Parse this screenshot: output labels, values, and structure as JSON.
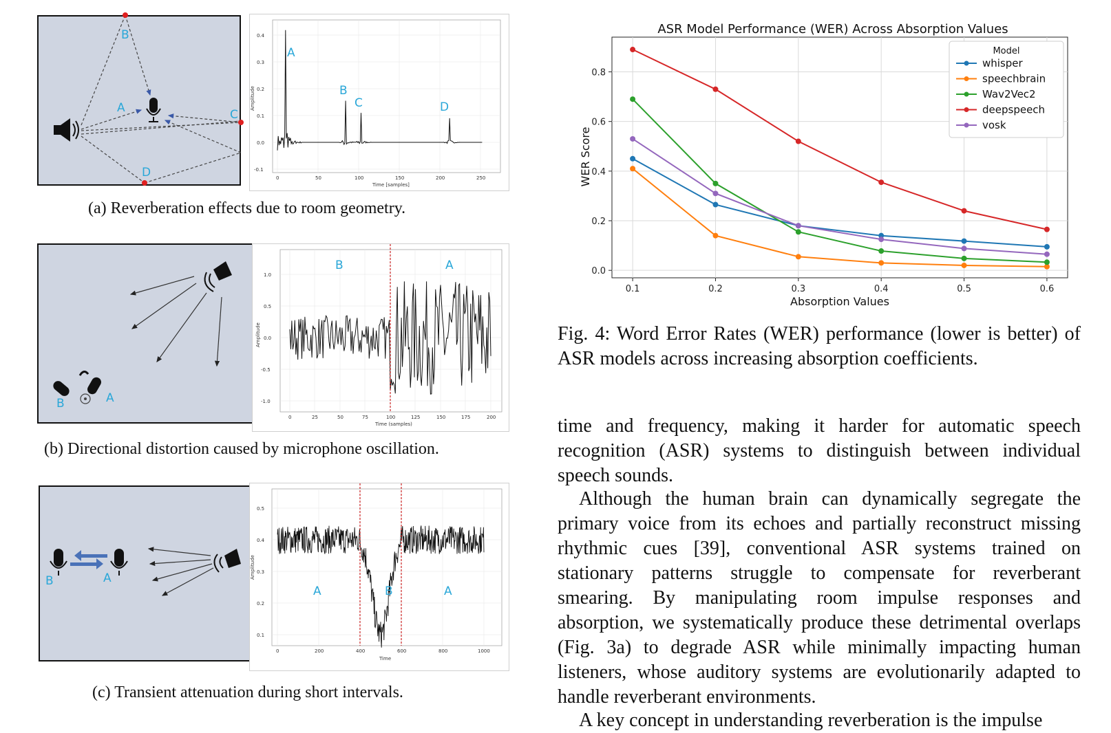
{
  "panel_a": {
    "caption": "(a) Reverberation effects due to room geometry.",
    "room_labels": [
      "A",
      "B",
      "C",
      "D"
    ],
    "plot_peak_labels": [
      "A",
      "B",
      "C",
      "D"
    ],
    "xlabel": "Time [samples]",
    "ylabel": "Amplitude",
    "xticks": [
      "0",
      "50",
      "100",
      "150",
      "200",
      "250"
    ],
    "yticks": [
      "0.4",
      "0.3",
      "0.2",
      "0.1",
      "0.0",
      "-0.1"
    ]
  },
  "panel_b": {
    "caption": "(b) Directional distortion caused by microphone oscillation.",
    "room_labels": [
      "B",
      "A"
    ],
    "plot_region_labels": [
      "B",
      "A"
    ],
    "xlabel": "Time (samples)",
    "ylabel": "Amplitude",
    "xticks": [
      "0",
      "25",
      "50",
      "75",
      "100",
      "125",
      "150",
      "175",
      "200"
    ],
    "yticks": [
      "1.0",
      "0.5",
      "0.0",
      "-0.5",
      "-1.0"
    ]
  },
  "panel_c": {
    "caption": "(c) Transient attenuation during short intervals.",
    "room_labels": [
      "B",
      "A"
    ],
    "plot_region_labels": [
      "A",
      "B",
      "A"
    ],
    "xlabel": "Time",
    "ylabel": "Amplitude",
    "xticks": [
      "0",
      "200",
      "400",
      "600",
      "800",
      "1000"
    ],
    "yticks": [
      "0.5",
      "0.4",
      "0.3",
      "0.2",
      "0.1"
    ]
  },
  "chart_data": {
    "type": "line",
    "title": "ASR Model Performance (WER) Across Absorption Values",
    "xlabel": "Absorption Values",
    "ylabel": "WER Score",
    "legend_title": "Model",
    "legend_position": "top-right",
    "grid": true,
    "xlim": [
      0.075,
      0.625
    ],
    "ylim": [
      -0.03,
      0.94
    ],
    "xticks": [
      0.1,
      0.2,
      0.3,
      0.4,
      0.5,
      0.6
    ],
    "yticks": [
      0.0,
      0.2,
      0.4,
      0.6,
      0.8
    ],
    "x": [
      0.1,
      0.2,
      0.3,
      0.4,
      0.5,
      0.6
    ],
    "series": [
      {
        "name": "whisper",
        "color": "#1f77b4",
        "values": [
          0.45,
          0.265,
          0.18,
          0.14,
          0.118,
          0.095
        ]
      },
      {
        "name": "speechbrain",
        "color": "#ff7f0e",
        "values": [
          0.41,
          0.14,
          0.055,
          0.03,
          0.02,
          0.015
        ]
      },
      {
        "name": "Wav2Vec2",
        "color": "#2ca02c",
        "values": [
          0.69,
          0.35,
          0.155,
          0.078,
          0.048,
          0.033
        ]
      },
      {
        "name": "deepspeech",
        "color": "#d62728",
        "values": [
          0.89,
          0.73,
          0.52,
          0.355,
          0.24,
          0.165
        ]
      },
      {
        "name": "vosk",
        "color": "#9467bd",
        "values": [
          0.53,
          0.31,
          0.18,
          0.125,
          0.088,
          0.065
        ]
      }
    ]
  },
  "fig4_caption": "Fig. 4: Word Error Rates (WER) performance (lower is better) of ASR models across increasing absorption coefficients.",
  "para1": "time and frequency, making it harder for automatic speech recognition (ASR) systems to distinguish between individual speech sounds.",
  "para2": "Although the human brain can dynamically segregate the primary voice from its echoes and partially reconstruct missing rhythmic cues [39], conventional ASR systems trained on stationary patterns struggle to compensate for reverberant smearing. By manipulating room impulse responses and absorption, we systematically produce these detrimental overlaps (Fig. 3a) to degrade ASR while minimally impacting human listeners, whose auditory systems are evolutionarily adapted to handle reverberant environments.",
  "para3_partial": "A key concept in understanding reverberation is the impulse"
}
